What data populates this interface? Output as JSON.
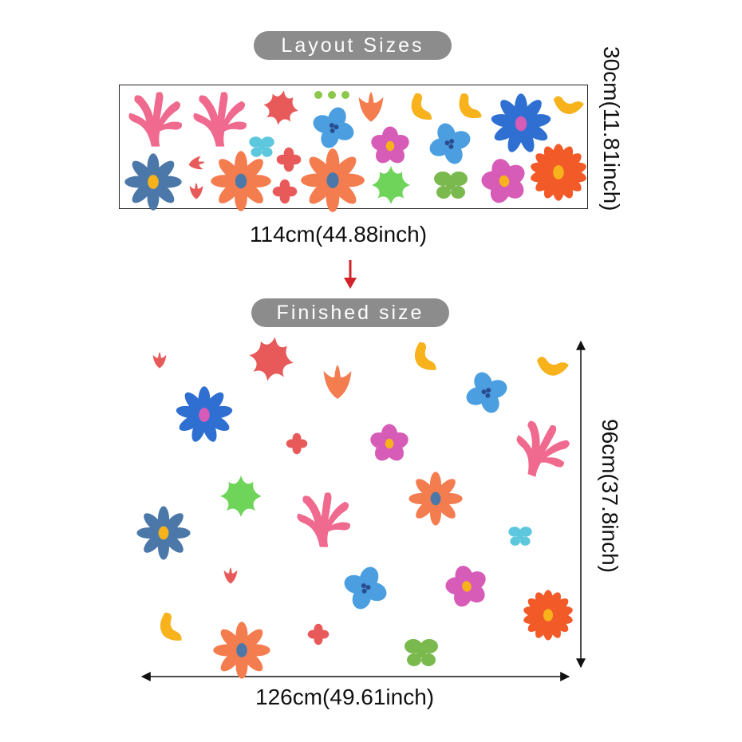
{
  "layout_label": "Layout Sizes",
  "finished_label": "Finished size",
  "layout_width": "114cm(44.88inch)",
  "layout_height": "30cm(11.81inch)",
  "finished_width": "126cm(49.61inch)",
  "finished_height": "96cm(37.8inch)",
  "colors": {
    "pink": "#f0698f",
    "coral": "#e85a5a",
    "orange": "#f47d50",
    "yellow": "#f7b21c",
    "blue": "#4b9fe0",
    "royal": "#2e6fd1",
    "cyan": "#5cc7dd",
    "magenta": "#d65cb8",
    "green": "#6fd45a",
    "olive": "#7ab94e",
    "slate": "#4b78a8",
    "red_orange": "#f25a28",
    "arrow": "#d2232a"
  }
}
